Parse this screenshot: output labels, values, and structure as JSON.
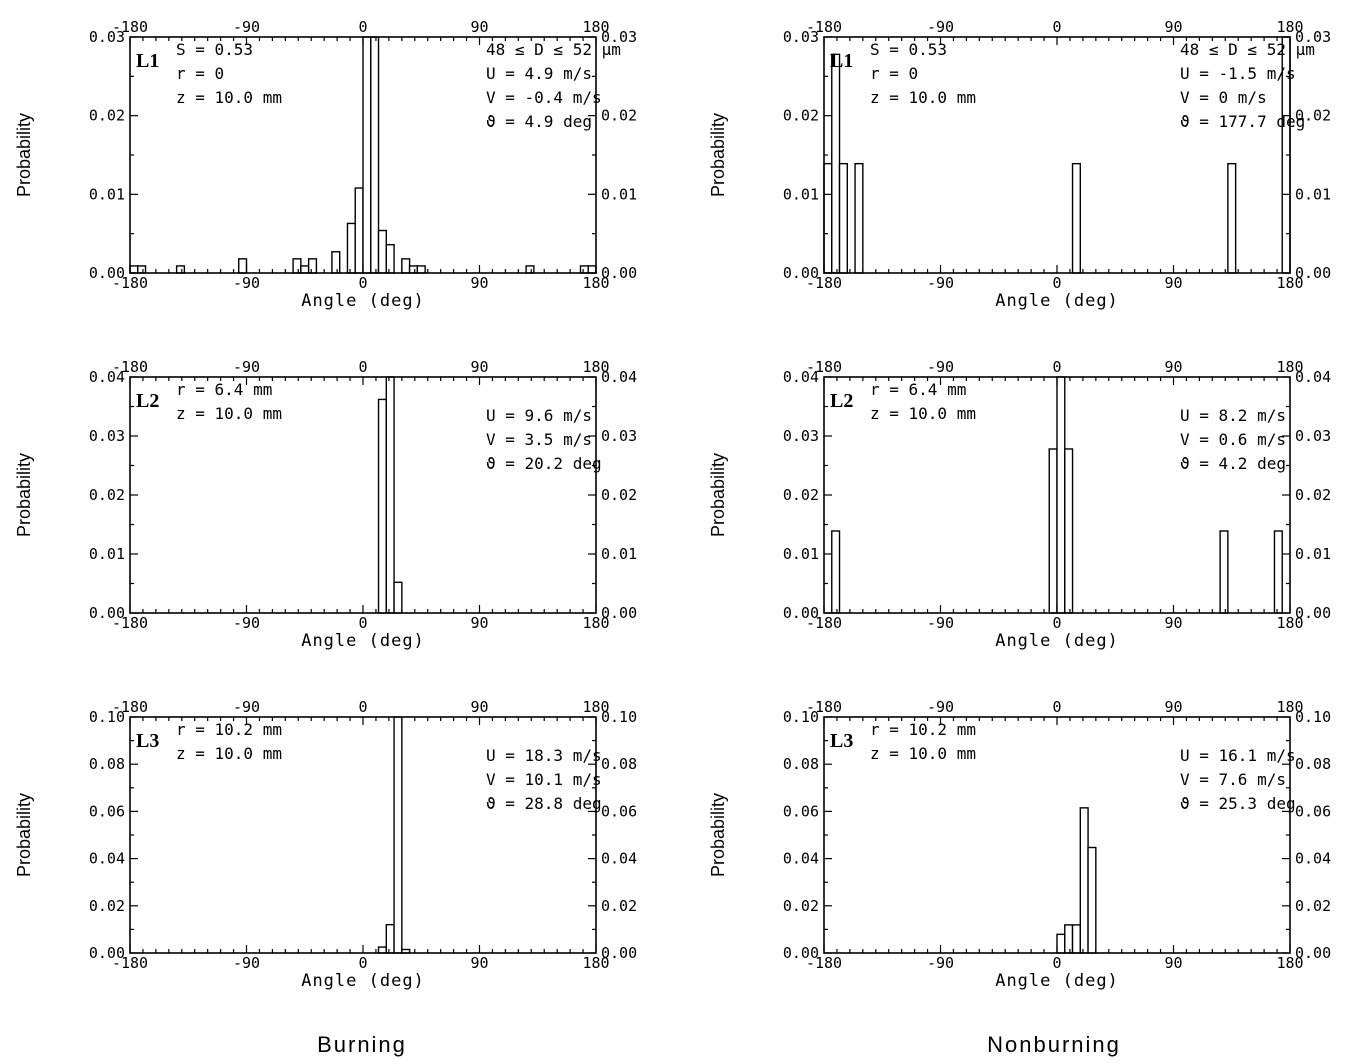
{
  "columns": [
    {
      "key": "burning",
      "label": "Burning"
    },
    {
      "key": "nonburning",
      "label": "Nonburning"
    }
  ],
  "chart_data": [
    {
      "type": "bar",
      "panel_label": "L1",
      "column": "burning",
      "xlabel": "Angle (deg)",
      "ylabel": "Probability",
      "xlim": [
        -180,
        180
      ],
      "ylim": [
        0,
        0.03
      ],
      "xticks": [
        "-180",
        "-90",
        "0",
        "90",
        "180"
      ],
      "yticks": [
        "0.00",
        "0.01",
        "0.02",
        "0.03"
      ],
      "left_annotations": [
        "S = 0.53",
        "r = 0",
        "z = 10.0 mm"
      ],
      "right_annotations": [
        "48 ≤ D ≤ 52 μm",
        "U = 4.9 m/s",
        "V = -0.4 m/s",
        "ϑ = 4.9 deg"
      ],
      "bin_width": 6,
      "bins": [
        {
          "x": -177,
          "y": 0.0009
        },
        {
          "x": -171,
          "y": 0.0009
        },
        {
          "x": -141,
          "y": 0.0009
        },
        {
          "x": -93,
          "y": 0.0018
        },
        {
          "x": -51,
          "y": 0.0018
        },
        {
          "x": -45,
          "y": 0.0009
        },
        {
          "x": -39,
          "y": 0.0018
        },
        {
          "x": -21,
          "y": 0.0027
        },
        {
          "x": -9,
          "y": 0.0063
        },
        {
          "x": -3,
          "y": 0.0108
        },
        {
          "x": 3,
          "y": 0.03
        },
        {
          "x": 9,
          "y": 0.03
        },
        {
          "x": 15,
          "y": 0.0054
        },
        {
          "x": 21,
          "y": 0.0036
        },
        {
          "x": 33,
          "y": 0.0018
        },
        {
          "x": 39,
          "y": 0.0009
        },
        {
          "x": 45,
          "y": 0.0009
        },
        {
          "x": 129,
          "y": 0.0009
        },
        {
          "x": 171,
          "y": 0.0009
        },
        {
          "x": 177,
          "y": 0.0009
        }
      ]
    },
    {
      "type": "bar",
      "panel_label": "L1",
      "column": "nonburning",
      "xlabel": "Angle (deg)",
      "ylabel": "Probability",
      "xlim": [
        -180,
        180
      ],
      "ylim": [
        0,
        0.03
      ],
      "xticks": [
        "-180",
        "-90",
        "0",
        "90",
        "180"
      ],
      "yticks": [
        "0.00",
        "0.01",
        "0.02",
        "0.03"
      ],
      "left_annotations": [
        "S = 0.53",
        "r = 0",
        "z = 10.0 mm"
      ],
      "right_annotations": [
        "48 ≤ D ≤ 52 μm",
        "U = -1.5 m/s",
        "V = 0 m/s",
        "ϑ = 177.7 deg"
      ],
      "bin_width": 6,
      "bins": [
        {
          "x": -177,
          "y": 0.0139
        },
        {
          "x": -171,
          "y": 0.0278
        },
        {
          "x": -165,
          "y": 0.0139
        },
        {
          "x": -153,
          "y": 0.0139
        },
        {
          "x": 15,
          "y": 0.0139
        },
        {
          "x": 135,
          "y": 0.0139
        },
        {
          "x": 177,
          "y": 0.03
        }
      ]
    },
    {
      "type": "bar",
      "panel_label": "L2",
      "column": "burning",
      "xlabel": "Angle (deg)",
      "ylabel": "Probability",
      "xlim": [
        -180,
        180
      ],
      "ylim": [
        0,
        0.04
      ],
      "xticks": [
        "-180",
        "-90",
        "0",
        "90",
        "180"
      ],
      "yticks": [
        "0.00",
        "0.01",
        "0.02",
        "0.03",
        "0.04"
      ],
      "left_annotations": [
        "r = 6.4 mm",
        "z = 10.0 mm"
      ],
      "right_annotations": [
        "U = 9.6 m/s",
        "V = 3.5 m/s",
        "ϑ = 20.2 deg"
      ],
      "bin_width": 6,
      "bins": [
        {
          "x": 15,
          "y": 0.0362
        },
        {
          "x": 21,
          "y": 0.04
        },
        {
          "x": 27,
          "y": 0.0052
        }
      ]
    },
    {
      "type": "bar",
      "panel_label": "L2",
      "column": "nonburning",
      "xlabel": "Angle (deg)",
      "ylabel": "Probability",
      "xlim": [
        -180,
        180
      ],
      "ylim": [
        0,
        0.04
      ],
      "xticks": [
        "-180",
        "-90",
        "0",
        "90",
        "180"
      ],
      "yticks": [
        "0.00",
        "0.01",
        "0.02",
        "0.03",
        "0.04"
      ],
      "left_annotations": [
        "r = 6.4 mm",
        "z = 10.0 mm"
      ],
      "right_annotations": [
        "U = 8.2 m/s",
        "V = 0.6 m/s",
        "ϑ = 4.2 deg"
      ],
      "bin_width": 6,
      "bins": [
        {
          "x": -171,
          "y": 0.0139
        },
        {
          "x": -3,
          "y": 0.0278
        },
        {
          "x": 3,
          "y": 0.04
        },
        {
          "x": 9,
          "y": 0.0278
        },
        {
          "x": 129,
          "y": 0.0139
        },
        {
          "x": 171,
          "y": 0.0139
        }
      ]
    },
    {
      "type": "bar",
      "panel_label": "L3",
      "column": "burning",
      "xlabel": "Angle (deg)",
      "ylabel": "Probability",
      "xlim": [
        -180,
        180
      ],
      "ylim": [
        0,
        0.1
      ],
      "xticks": [
        "-180",
        "-90",
        "0",
        "90",
        "180"
      ],
      "yticks": [
        "0.00",
        "0.02",
        "0.04",
        "0.06",
        "0.08",
        "0.10"
      ],
      "left_annotations": [
        "r = 10.2 mm",
        "z = 10.0 mm"
      ],
      "right_annotations": [
        "U = 18.3 m/s",
        "V = 10.1 m/s",
        "ϑ = 28.8 deg"
      ],
      "bin_width": 6,
      "bins": [
        {
          "x": 15,
          "y": 0.0025
        },
        {
          "x": 21,
          "y": 0.012
        },
        {
          "x": 27,
          "y": 0.1
        },
        {
          "x": 33,
          "y": 0.0015
        }
      ]
    },
    {
      "type": "bar",
      "panel_label": "L3",
      "column": "nonburning",
      "xlabel": "Angle (deg)",
      "ylabel": "Probability",
      "xlim": [
        -180,
        180
      ],
      "ylim": [
        0,
        0.1
      ],
      "xticks": [
        "-180",
        "-90",
        "0",
        "90",
        "180"
      ],
      "yticks": [
        "0.00",
        "0.02",
        "0.04",
        "0.06",
        "0.08",
        "0.10"
      ],
      "left_annotations": [
        "r = 10.2 mm",
        "z = 10.0 mm"
      ],
      "right_annotations": [
        "U = 16.1 m/s",
        "V = 7.6 m/s",
        "ϑ = 25.3 deg"
      ],
      "bin_width": 6,
      "bins": [
        {
          "x": 3,
          "y": 0.0079
        },
        {
          "x": 9,
          "y": 0.0119
        },
        {
          "x": 15,
          "y": 0.0119
        },
        {
          "x": 21,
          "y": 0.0615
        },
        {
          "x": 27,
          "y": 0.0447
        }
      ]
    }
  ]
}
